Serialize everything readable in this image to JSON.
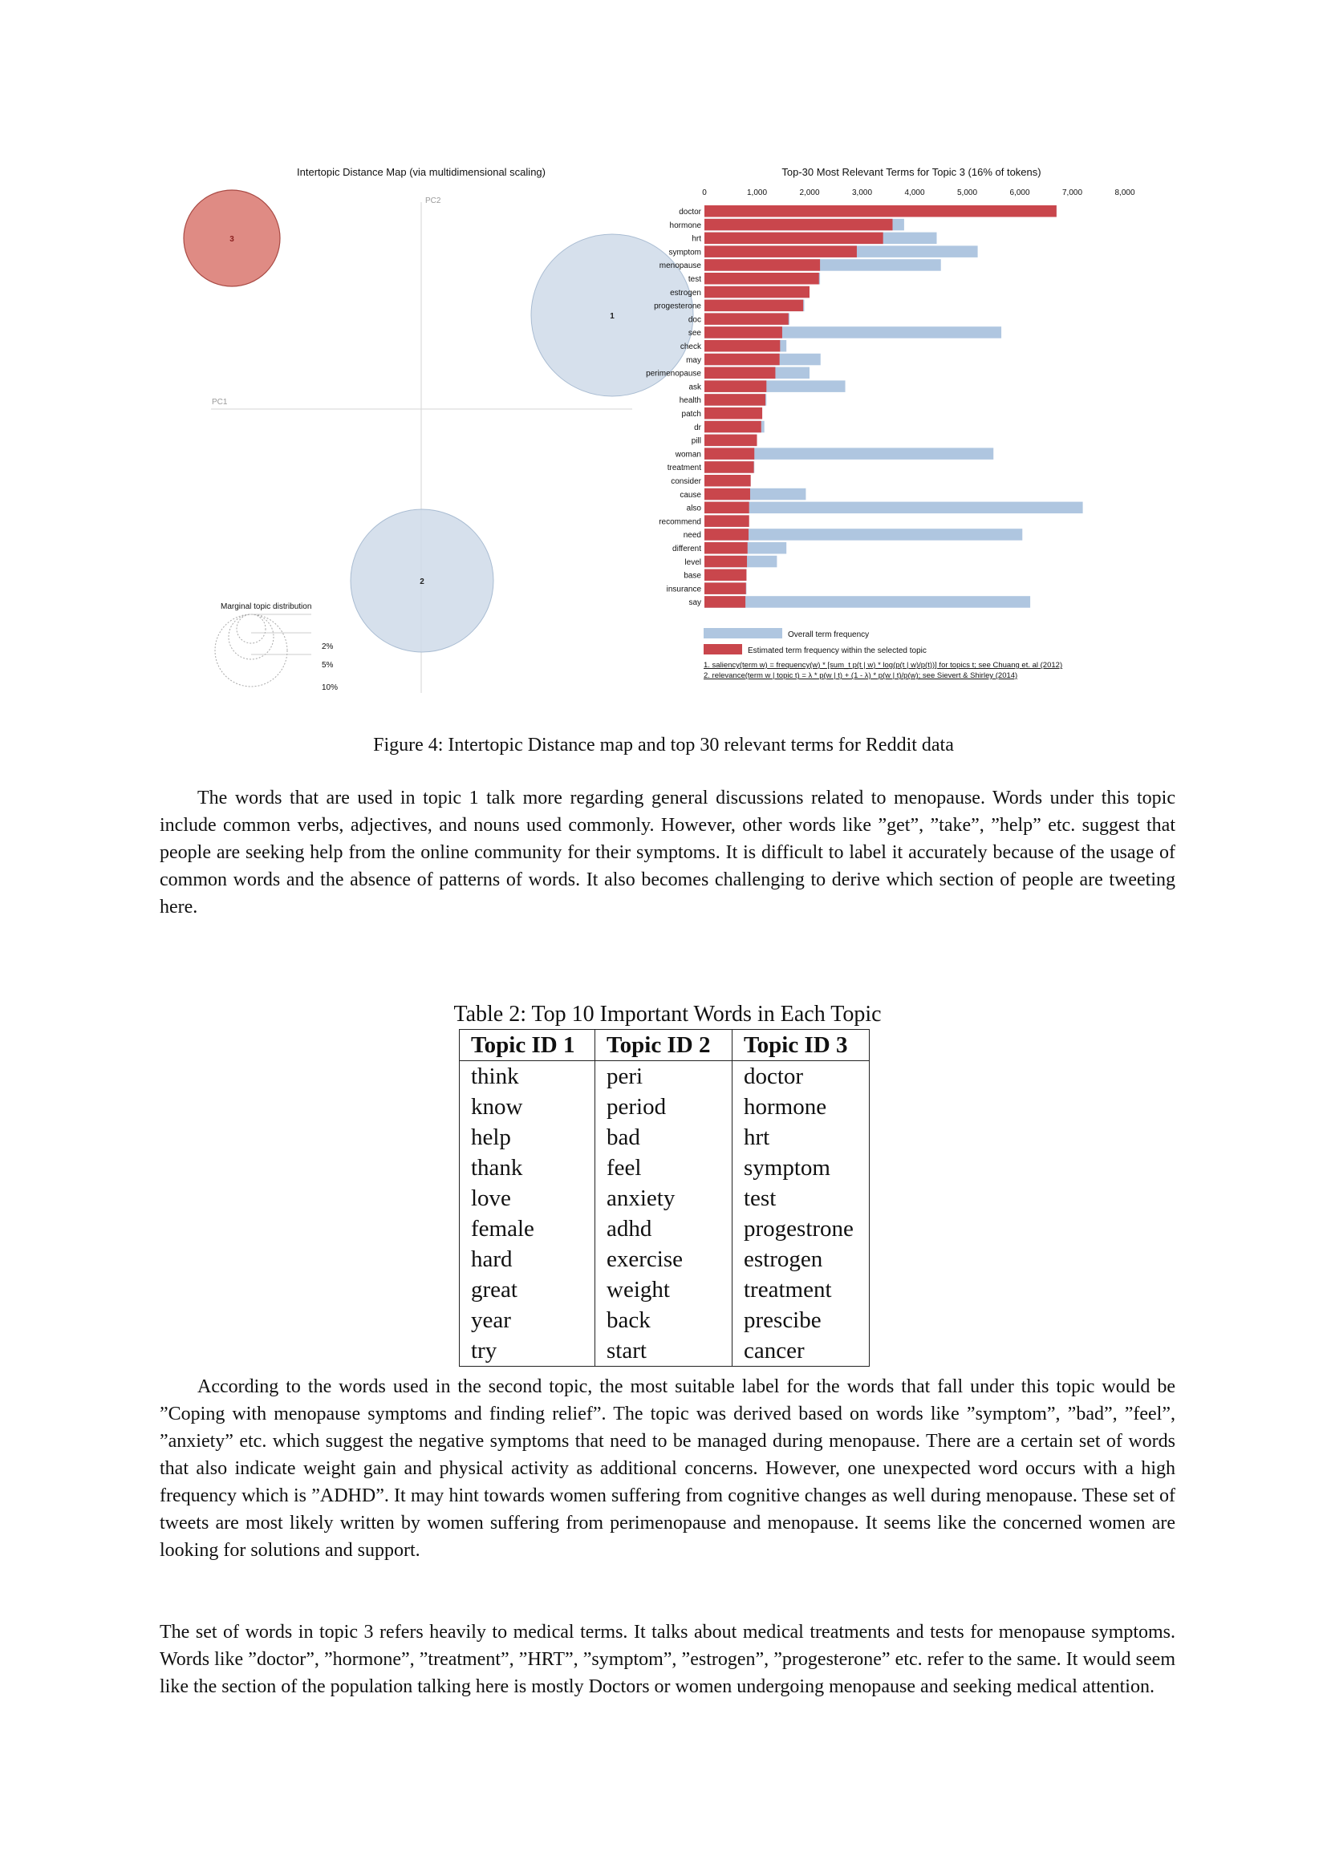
{
  "figure": {
    "left_title": "Intertopic Distance Map (via multidimensional scaling)",
    "pc1_label": "PC1",
    "pc2_label": "PC2",
    "topics": [
      {
        "id": "3",
        "selected": true
      },
      {
        "id": "1",
        "selected": false
      },
      {
        "id": "2",
        "selected": false
      }
    ],
    "marginal_title": "Marginal topic distribution",
    "marginal_levels": [
      "2%",
      "5%",
      "10%"
    ],
    "legend_overall": "Overall term frequency",
    "legend_estimated": "Estimated term frequency within the selected topic",
    "footnote1": "1. saliency(term w) = frequency(w) * [sum_t p(t | w) * log(p(t | w)/p(t))] for topics t; see Chuang et. al (2012)",
    "footnote2": "2. relevance(term w | topic t) = λ * p(w | t) + (1 - λ) * p(w | t)/p(w); see Sievert & Shirley (2014)",
    "colors": {
      "selected_topic": "#d9776f",
      "topic": "#cfdbe9",
      "overall_bar": "#afc6e0",
      "topic_bar": "#c9464c"
    }
  },
  "chart_data": {
    "type": "bar",
    "orientation": "horizontal",
    "title": "Top-30 Most Relevant Terms for Topic 3 (16% of tokens)",
    "xlim": [
      0,
      8000
    ],
    "ticks": [
      "0",
      "1,000",
      "2,000",
      "3,000",
      "4,000",
      "5,000",
      "6,000",
      "7,000",
      "8,000"
    ],
    "categories": [
      "doctor",
      "hormone",
      "hrt",
      "symptom",
      "menopause",
      "test",
      "estrogen",
      "progesterone",
      "doc",
      "see",
      "check",
      "may",
      "perimenopause",
      "ask",
      "health",
      "patch",
      "dr",
      "pill",
      "woman",
      "treatment",
      "consider",
      "cause",
      "also",
      "recommend",
      "need",
      "different",
      "level",
      "base",
      "insurance",
      "say"
    ],
    "series": [
      {
        "name": "Overall term frequency",
        "values": [
          6700,
          3800,
          4420,
          5200,
          4500,
          2200,
          2000,
          1900,
          1620,
          5650,
          1560,
          2210,
          2000,
          2680,
          1180,
          1100,
          1140,
          1000,
          5500,
          950,
          880,
          1930,
          7200,
          850,
          6050,
          1560,
          1380,
          800,
          800,
          6200
        ]
      },
      {
        "name": "Estimated term frequency within the selected topic",
        "values": [
          6700,
          3580,
          3400,
          2900,
          2200,
          2180,
          2000,
          1880,
          1600,
          1480,
          1440,
          1430,
          1350,
          1180,
          1160,
          1100,
          1080,
          1000,
          950,
          940,
          880,
          870,
          850,
          850,
          840,
          820,
          810,
          800,
          790,
          780
        ]
      }
    ]
  },
  "figure_caption": "Figure 4: Intertopic Distance map and top 30 relevant terms for Reddit data",
  "para1": "The words that are used in topic 1 talk more regarding general discussions related to menopause. Words under this topic include common verbs, adjectives, and nouns used commonly. However, other words like ”get”, ”take”, ”help” etc. suggest that people are seeking help from the online community for their symptoms. It is difficult to label it accurately because of the usage of common words and the absence of patterns of words. It also becomes challenging to derive which section of people are tweeting here.",
  "table": {
    "caption": "Table 2: Top 10 Important Words in Each Topic",
    "headers": [
      "Topic ID 1",
      "Topic ID 2",
      "Topic ID 3"
    ],
    "rows": [
      [
        "think",
        "peri",
        "doctor"
      ],
      [
        "know",
        "period",
        "hormone"
      ],
      [
        "help",
        "bad",
        "hrt"
      ],
      [
        "thank",
        "feel",
        "symptom"
      ],
      [
        "love",
        "anxiety",
        "test"
      ],
      [
        "female",
        "adhd",
        "progestrone"
      ],
      [
        "hard",
        "exercise",
        "estrogen"
      ],
      [
        "great",
        "weight",
        "treatment"
      ],
      [
        "year",
        "back",
        "prescibe"
      ],
      [
        "try",
        "start",
        "cancer"
      ]
    ]
  },
  "para2": "According to the words used in the second topic, the most suitable label for the words that fall under this topic would be ”Coping with menopause symptoms and finding relief”. The topic was derived based on words like ”symptom”, ”bad”, ”feel”, ”anxiety” etc. which suggest the negative symptoms that need to be managed during menopause. There are a certain set of words that also indicate weight gain and physical activity as additional concerns. However, one unexpected word occurs with a high frequency which is ”ADHD”. It may hint towards women suffering from cognitive changes as well during menopause. These set of tweets are most likely written by women suffering from perimenopause and menopause. It seems like the concerned women are looking for solutions and support.",
  "para3": "The set of words in topic 3 refers heavily to medical terms. It talks about medical treatments and tests for menopause symptoms. Words like ”doctor”, ”hormone”, ”treatment”, ”HRT”, ”symptom”, ”estrogen”, ”progesterone” etc. refer to the same. It would seem like the section of the population talking here is mostly Doctors or women undergoing menopause and seeking medical attention."
}
